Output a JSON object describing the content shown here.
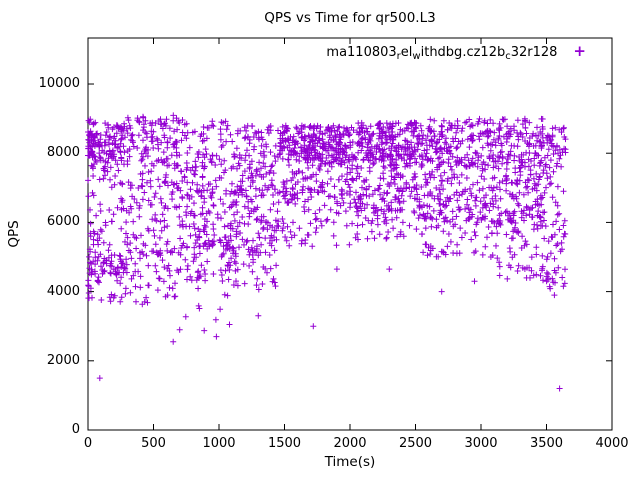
{
  "chart_data": {
    "type": "scatter",
    "title": "QPS vs Time for qr500.L3",
    "xlabel": "Time(s)",
    "ylabel": "QPS",
    "xlim": [
      0,
      4000
    ],
    "ylim": [
      0,
      10000
    ],
    "xticks": [
      0,
      500,
      1000,
      1500,
      2000,
      2500,
      3000,
      3500,
      4000
    ],
    "yticks": [
      0,
      2000,
      4000,
      6000,
      8000,
      10000
    ],
    "grid": false,
    "marker": "plus",
    "color": "#9400D3",
    "legend": {
      "position": "top-right-inside",
      "label_plain": "ma110803_rel_withdbg.cz12b_c32r128",
      "segments": [
        {
          "text": "ma110803"
        },
        {
          "text": "r",
          "sub": true
        },
        {
          "text": "el"
        },
        {
          "text": "w",
          "sub": true
        },
        {
          "text": "ithdbg.cz12b"
        },
        {
          "text": "c",
          "sub": true
        },
        {
          "text": "32r128"
        }
      ],
      "marker": "+"
    },
    "points_estimate_note": "dense scatter of ~2700 QPS samples vs time, 0-3650 s, mostly 4000-9000 QPS",
    "point_distribution": [
      {
        "t": [
          0,
          60
        ],
        "count": 90,
        "bands": [
          {
            "y": [
              7800,
              9000
            ],
            "w": 5
          },
          {
            "y": [
              4300,
              7800
            ],
            "w": 4
          },
          {
            "y": [
              3800,
              5200
            ],
            "w": 2
          }
        ]
      },
      {
        "t": [
          60,
          300
        ],
        "count": 200,
        "bands": [
          {
            "y": [
              7500,
              8900
            ],
            "w": 5
          },
          {
            "y": [
              4500,
              7500
            ],
            "w": 4
          },
          {
            "y": [
              3700,
              5000
            ],
            "w": 2
          }
        ]
      },
      {
        "t": [
          300,
          700
        ],
        "count": 260,
        "bands": [
          {
            "y": [
              7600,
              9100
            ],
            "w": 4
          },
          {
            "y": [
              5000,
              7600
            ],
            "w": 4
          },
          {
            "y": [
              3600,
              5200
            ],
            "w": 2
          }
        ]
      },
      {
        "t": [
          700,
          1100
        ],
        "count": 260,
        "bands": [
          {
            "y": [
              7500,
              9000
            ],
            "w": 3
          },
          {
            "y": [
              5200,
              7500
            ],
            "w": 4
          },
          {
            "y": [
              4300,
              5600
            ],
            "w": 3
          },
          {
            "y": [
              2600,
              4300
            ],
            "w": 0.5
          }
        ]
      },
      {
        "t": [
          1100,
          1450
        ],
        "count": 240,
        "bands": [
          {
            "y": [
              6800,
              8800
            ],
            "w": 5
          },
          {
            "y": [
              5000,
              7000
            ],
            "w": 4
          },
          {
            "y": [
              4000,
              5200
            ],
            "w": 1
          }
        ]
      },
      {
        "t": [
          1450,
          2000
        ],
        "count": 420,
        "bands": [
          {
            "y": [
              7800,
              8800
            ],
            "w": 7
          },
          {
            "y": [
              6500,
              7800
            ],
            "w": 3
          },
          {
            "y": [
              5300,
              6500
            ],
            "w": 1.5
          }
        ]
      },
      {
        "t": [
          2000,
          2550
        ],
        "count": 430,
        "bands": [
          {
            "y": [
              7800,
              8900
            ],
            "w": 6
          },
          {
            "y": [
              6300,
              7800
            ],
            "w": 4
          },
          {
            "y": [
              5500,
              6500
            ],
            "w": 1.5
          }
        ]
      },
      {
        "t": [
          2550,
          3100
        ],
        "count": 380,
        "bands": [
          {
            "y": [
              7600,
              9000
            ],
            "w": 5
          },
          {
            "y": [
              6000,
              7600
            ],
            "w": 4
          },
          {
            "y": [
              5000,
              6200
            ],
            "w": 1.5
          }
        ]
      },
      {
        "t": [
          3100,
          3500
        ],
        "count": 300,
        "bands": [
          {
            "y": [
              7500,
              9000
            ],
            "w": 4
          },
          {
            "y": [
              5800,
              7500
            ],
            "w": 4
          },
          {
            "y": [
              4300,
              5800
            ],
            "w": 2
          }
        ]
      },
      {
        "t": [
          3500,
          3650
        ],
        "count": 90,
        "bands": [
          {
            "y": [
              7800,
              8900
            ],
            "w": 3
          },
          {
            "y": [
              5200,
              7800
            ],
            "w": 3
          },
          {
            "y": [
              4000,
              5600
            ],
            "w": 3
          }
        ]
      }
    ],
    "outliers": [
      [
        90,
        1500
      ],
      [
        650,
        2550
      ],
      [
        700,
        2900
      ],
      [
        980,
        2700
      ],
      [
        1080,
        3050
      ],
      [
        1300,
        3300
      ],
      [
        1720,
        3000
      ],
      [
        1900,
        4650
      ],
      [
        2300,
        4650
      ],
      [
        2700,
        4000
      ],
      [
        2950,
        4300
      ],
      [
        3560,
        3900
      ],
      [
        3600,
        1200
      ]
    ]
  }
}
